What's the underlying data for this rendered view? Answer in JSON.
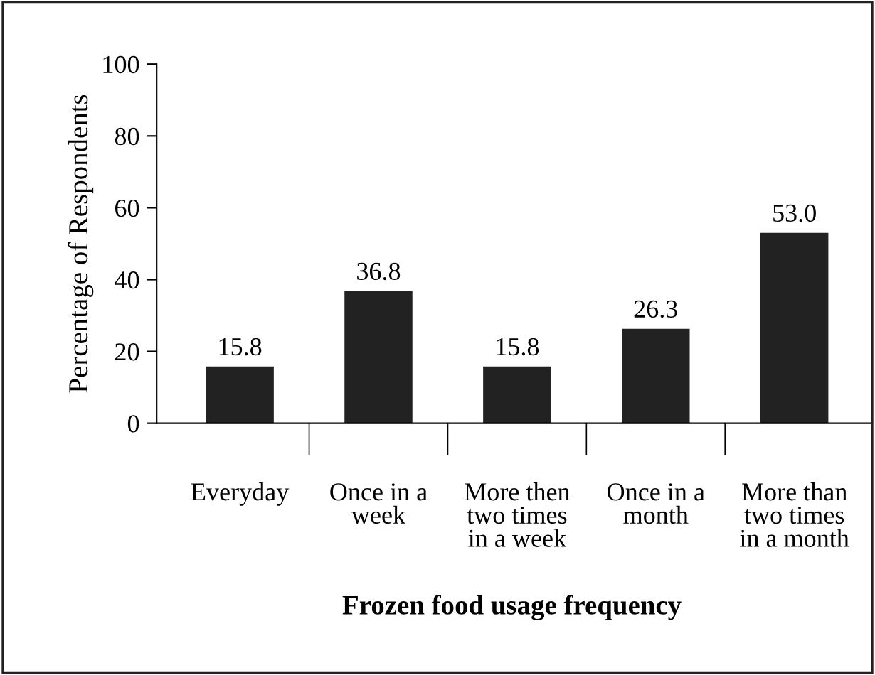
{
  "chart_data": {
    "type": "bar",
    "xlabel": "Frozen food usage frequency",
    "ylabel": "Percentage of Respondents",
    "categories": [
      "Everyday",
      "Once in a\nweek",
      "More then\ntwo times\nin a week",
      "Once in a\nmonth",
      "More than\ntwo times\nin a month"
    ],
    "values": [
      15.8,
      36.8,
      15.8,
      26.3,
      53.0
    ],
    "value_labels": [
      "15.8",
      "36.8",
      "15.8",
      "26.3",
      "53.0"
    ],
    "color": "#222222",
    "ylim": [
      0,
      100
    ],
    "yticks": [
      0,
      20,
      40,
      60,
      80,
      100
    ],
    "grid": false,
    "legend": false
  }
}
